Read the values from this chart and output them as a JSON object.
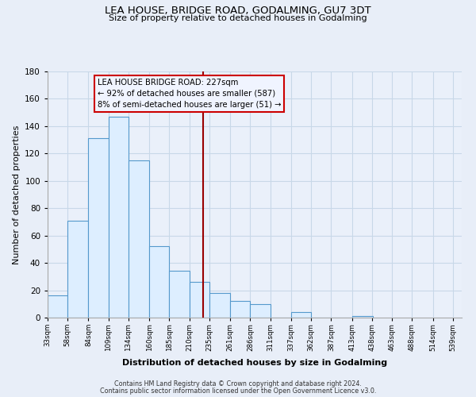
{
  "title": "LEA HOUSE, BRIDGE ROAD, GODALMING, GU7 3DT",
  "subtitle": "Size of property relative to detached houses in Godalming",
  "xlabel": "Distribution of detached houses by size in Godalming",
  "ylabel": "Number of detached properties",
  "bar_values": [
    16,
    71,
    131,
    147,
    115,
    52,
    34,
    26,
    18,
    12,
    10,
    0,
    4,
    0,
    0,
    1
  ],
  "bin_edges": [
    33,
    58,
    84,
    109,
    134,
    160,
    185,
    210,
    235,
    261,
    286,
    311,
    337,
    362,
    387,
    413,
    439
  ],
  "tick_labels": [
    "33sqm",
    "58sqm",
    "84sqm",
    "109sqm",
    "134sqm",
    "160sqm",
    "185sqm",
    "210sqm",
    "235sqm",
    "261sqm",
    "286sqm",
    "311sqm",
    "337sqm",
    "362sqm",
    "387sqm",
    "413sqm",
    "438sqm",
    "463sqm",
    "488sqm",
    "514sqm",
    "539sqm"
  ],
  "all_tick_positions": [
    33,
    58,
    84,
    109,
    134,
    160,
    185,
    210,
    235,
    261,
    286,
    311,
    337,
    362,
    387,
    413,
    438,
    463,
    488,
    514,
    539
  ],
  "bar_color": "#ddeeff",
  "bar_edge_color": "#5599cc",
  "grid_color": "#c8d8e8",
  "vline_x": 227,
  "vline_color": "#990000",
  "annotation_title": "LEA HOUSE BRIDGE ROAD: 227sqm",
  "annotation_line1": "← 92% of detached houses are smaller (587)",
  "annotation_line2": "8% of semi-detached houses are larger (51) →",
  "box_edge_color": "#cc0000",
  "box_face_color": "#f0f4ff",
  "ylim": [
    0,
    180
  ],
  "yticks": [
    0,
    20,
    40,
    60,
    80,
    100,
    120,
    140,
    160,
    180
  ],
  "footer1": "Contains HM Land Registry data © Crown copyright and database right 2024.",
  "footer2": "Contains public sector information licensed under the Open Government Licence v3.0.",
  "background_color": "#e8eef8",
  "plot_bg_color": "#eaf0fa"
}
